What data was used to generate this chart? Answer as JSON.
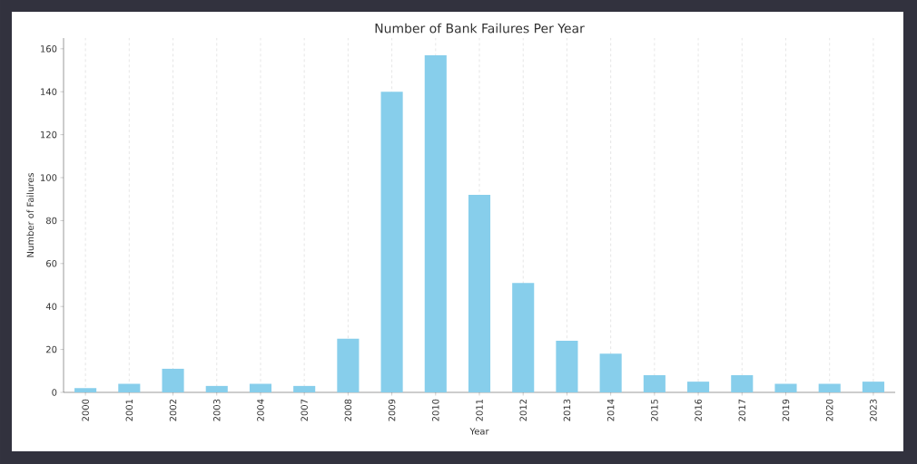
{
  "chart_data": {
    "type": "bar",
    "title": "Number of Bank Failures Per Year",
    "xlabel": "Year",
    "ylabel": "Number of Failures",
    "categories": [
      "2000",
      "2001",
      "2002",
      "2003",
      "2004",
      "2007",
      "2008",
      "2009",
      "2010",
      "2011",
      "2012",
      "2013",
      "2014",
      "2015",
      "2016",
      "2017",
      "2019",
      "2020",
      "2023"
    ],
    "values": [
      2,
      4,
      11,
      3,
      4,
      3,
      25,
      140,
      157,
      92,
      51,
      24,
      18,
      8,
      5,
      8,
      4,
      4,
      5
    ],
    "color": "#87ceeb",
    "ylim": [
      0,
      165
    ],
    "yticks": [
      0,
      20,
      40,
      60,
      80,
      100,
      120,
      140,
      160
    ],
    "grid": "x"
  }
}
